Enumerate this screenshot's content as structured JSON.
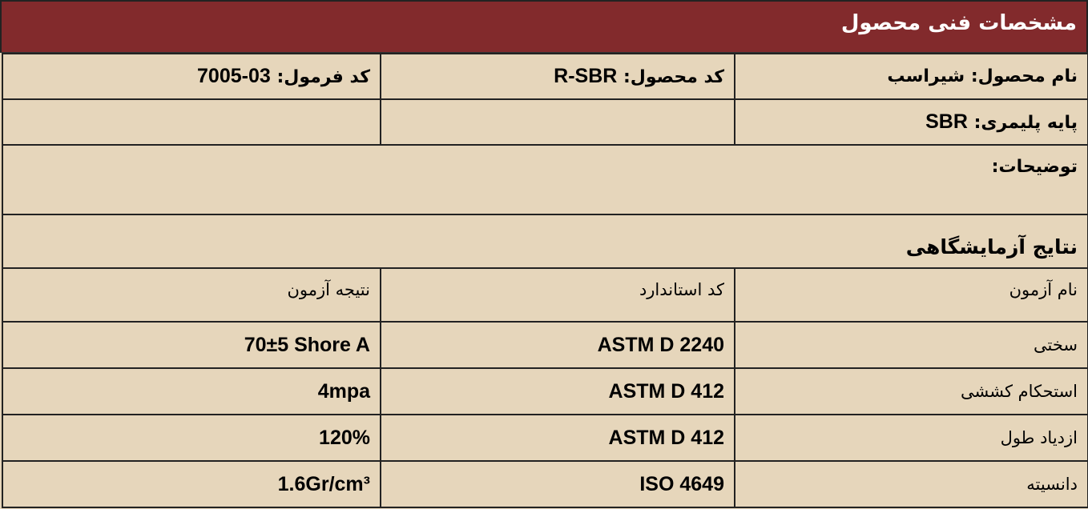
{
  "header": {
    "title": "مشخصات فنی محصول"
  },
  "info": {
    "product_name": {
      "label": "نام محصول:",
      "value": "شیراسب"
    },
    "product_code": {
      "label": "کد محصول:",
      "value": "R-SBR"
    },
    "formula_code": {
      "label": "کد فرمول:",
      "value": "7005-03"
    },
    "polymer_base": {
      "label": "پایه پلیمری:",
      "value": "SBR"
    },
    "description": {
      "label": "توضیحات:"
    }
  },
  "lab": {
    "title": "نتایج آزمایشگاهی",
    "columns": [
      "نام آزمون",
      "کد استاندارد",
      "نتیجه آزمون"
    ],
    "rows": [
      {
        "test": "سختی",
        "standard": "ASTM D 2240",
        "result": "70±5 Shore A"
      },
      {
        "test": "استحکام کششی",
        "standard": "ASTM D 412",
        "result": "4mpa"
      },
      {
        "test": "ازدیاد طول",
        "standard": "ASTM D 412",
        "result": "120%"
      },
      {
        "test": "دانسیته",
        "standard": "ISO 4649",
        "result": "1.6Gr/cm³"
      }
    ]
  },
  "colors": {
    "header_bg": "#822A2C",
    "body_bg": "#E6D6BB"
  }
}
